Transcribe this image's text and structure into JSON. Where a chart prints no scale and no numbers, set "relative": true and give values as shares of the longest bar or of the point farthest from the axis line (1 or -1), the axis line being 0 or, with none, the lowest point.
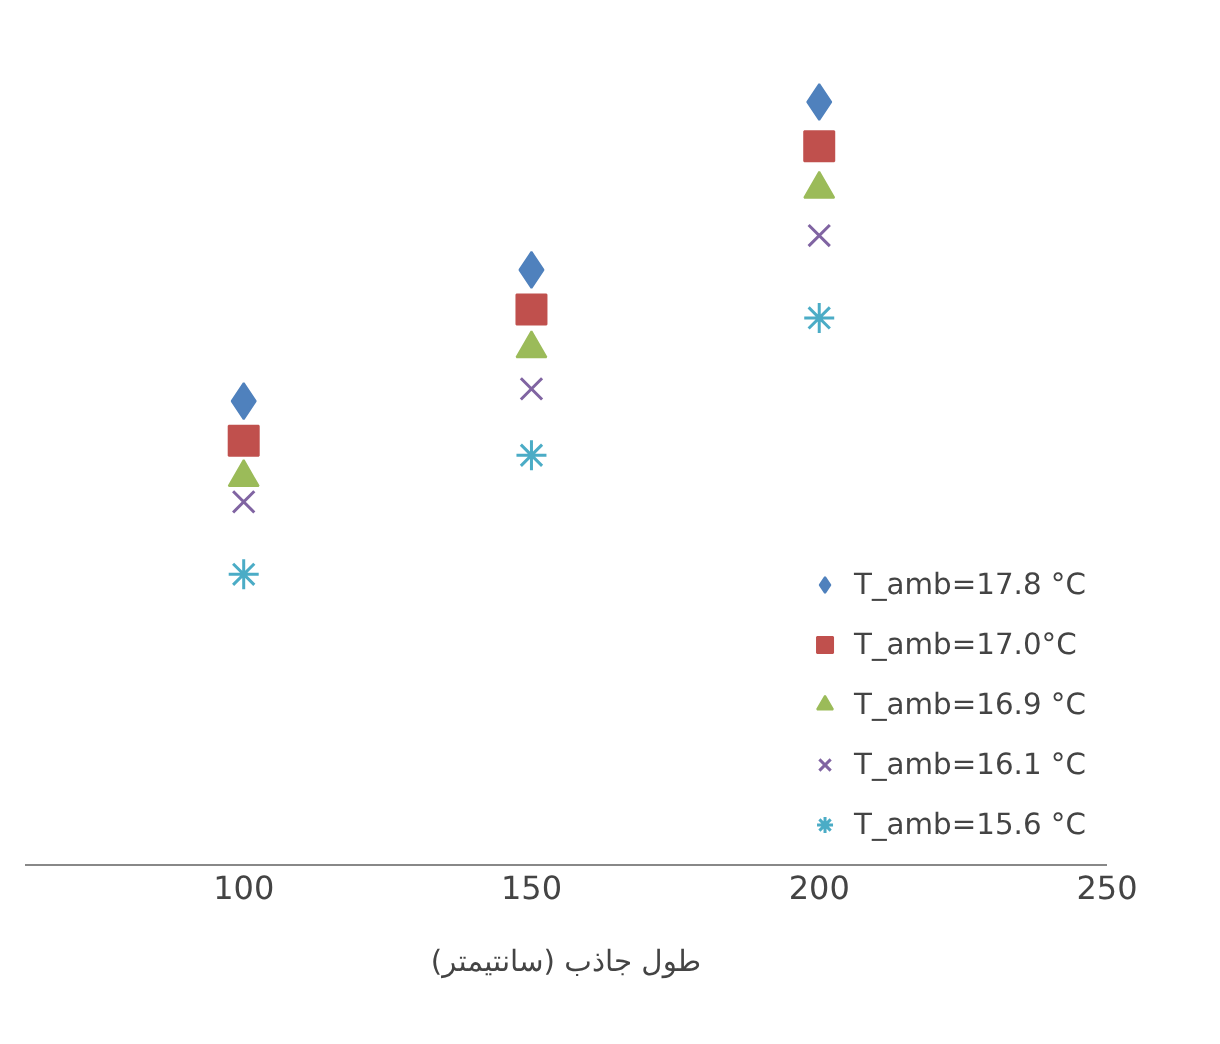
{
  "chart_data": {
    "type": "scatter",
    "relative": true,
    "xlabel": "طول جاذب (سانتیمتر)",
    "x": [
      100,
      150,
      200
    ],
    "xlim": [
      62,
      250
    ],
    "xticks": [
      100,
      150,
      200,
      250
    ],
    "legend": "bottom right",
    "series": [
      {
        "name": "T_amb=17.8 °C",
        "color": "#4f81bd",
        "marker": "diamond",
        "values": [
          0.608,
          0.78,
          1
        ]
      },
      {
        "name": "T_amb=17.0°C",
        "color": "#c0504d",
        "marker": "square",
        "values": [
          0.556,
          0.728,
          0.942
        ]
      },
      {
        "name": "T_amb=16.9 °C",
        "color": "#9bbb59",
        "marker": "triangle",
        "values": [
          0.508,
          0.677,
          0.886
        ]
      },
      {
        "name": "T_amb=16.1 °C",
        "color": "#8064a2",
        "marker": "cross",
        "values": [
          0.476,
          0.624,
          0.825
        ]
      },
      {
        "name": "T_amb=15.6 °C",
        "color": "#4bacc6",
        "marker": "cross",
        "values": [
          0.381,
          0.537,
          0.717
        ]
      }
    ]
  }
}
